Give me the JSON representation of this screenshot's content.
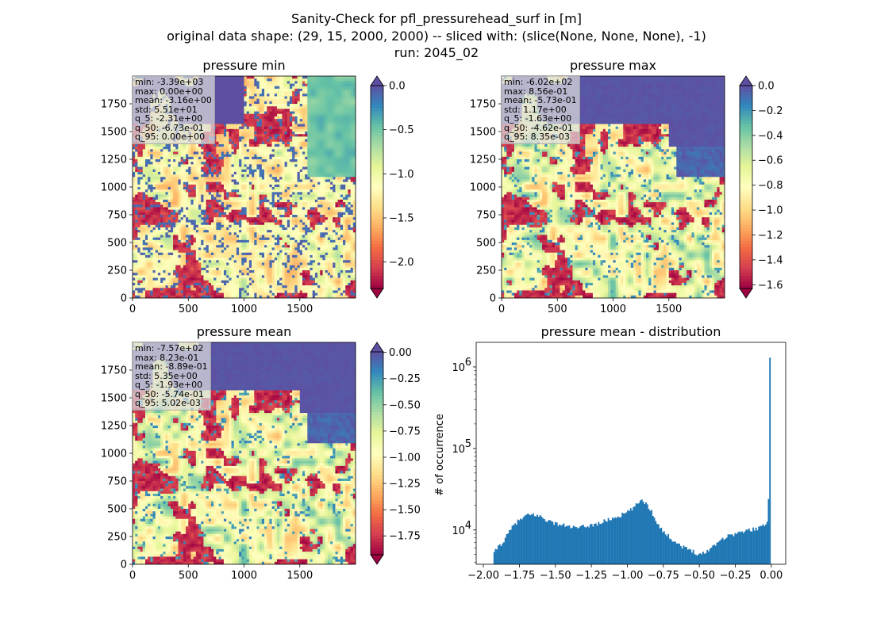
{
  "figure": {
    "title_lines": [
      "Sanity-Check for pfl_pressurehead_surf in [m]",
      "original data shape: (29, 15, 2000, 2000) -- sliced with: (slice(None, None, None), -1)",
      "run: 2045_02"
    ],
    "colormap": "Spectral",
    "colors": {
      "hist_bar": "#1f77b4",
      "over": "#5e4fa2"
    }
  },
  "chart_data": [
    {
      "type": "heatmap",
      "title": "pressure min",
      "x_ticks": [
        "0",
        "500",
        "1000",
        "1500"
      ],
      "y_ticks": [
        "0",
        "250",
        "500",
        "750",
        "1000",
        "1250",
        "1500",
        "1750"
      ],
      "xlim": [
        0,
        2000
      ],
      "ylim": [
        0,
        2000
      ],
      "colorbar": {
        "vmin": -2.3,
        "vmax": 0.0,
        "ticks": [
          "0.0",
          "-0.5",
          "-1.0",
          "-1.5",
          "-2.0"
        ],
        "extend": "both"
      },
      "stats": [
        "min: -3.39e+03",
        "max: 0.00e+00",
        "mean: -3.16e+00",
        "std: 5.51e+01",
        "q_5: -2.31e+00",
        "q_50: -6.73e-01",
        "q_95: 0.00e+00"
      ]
    },
    {
      "type": "heatmap",
      "title": "pressure max",
      "x_ticks": [
        "0",
        "500",
        "1000",
        "1500"
      ],
      "y_ticks": [
        "0",
        "250",
        "500",
        "750",
        "1000",
        "1250",
        "1500",
        "1750"
      ],
      "xlim": [
        0,
        2000
      ],
      "ylim": [
        0,
        2000
      ],
      "colorbar": {
        "vmin": -1.63,
        "vmax": 0.0,
        "ticks": [
          "0.0",
          "-0.2",
          "-0.4",
          "-0.6",
          "-0.8",
          "-1.0",
          "-1.2",
          "-1.4",
          "-1.6"
        ],
        "extend": "both"
      },
      "stats": [
        "min: -6.02e+02",
        "max: 8.56e-01",
        "mean: -5.73e-01",
        "std: 1.17e+00",
        "q_5: -1.63e+00",
        "q_50: -4.62e-01",
        "q_95: 8.35e-03"
      ]
    },
    {
      "type": "heatmap",
      "title": "pressure mean",
      "x_ticks": [
        "0",
        "500",
        "1000",
        "1500"
      ],
      "y_ticks": [
        "0",
        "250",
        "500",
        "750",
        "1000",
        "1250",
        "1500",
        "1750"
      ],
      "xlim": [
        0,
        2000
      ],
      "ylim": [
        0,
        2000
      ],
      "colorbar": {
        "vmin": -1.93,
        "vmax": 0.005,
        "ticks": [
          "0.00",
          "-0.25",
          "-0.50",
          "-0.75",
          "-1.00",
          "-1.25",
          "-1.50",
          "-1.75"
        ],
        "extend": "both"
      },
      "stats": [
        "min: -7.57e+02",
        "max: 8.23e-01",
        "mean: -8.89e-01",
        "std: 5.35e+00",
        "q_5: -1.93e+00",
        "q_50: -5.74e-01",
        "q_95: 5.02e-03"
      ]
    },
    {
      "type": "bar",
      "title": "pressure mean - distribution",
      "ylabel": "# of occurrence",
      "y_scale": "log",
      "xlim": [
        -2.05,
        0.1
      ],
      "ylim": [
        3800,
        2000000
      ],
      "x_ticks": [
        "−2.00",
        "−1.75",
        "−1.50",
        "−1.25",
        "−1.00",
        "−0.75",
        "−0.50",
        "−0.25",
        "0.00"
      ],
      "y_ticks": [
        {
          "base": "10",
          "exp": "4"
        },
        {
          "base": "10",
          "exp": "5"
        },
        {
          "base": "10",
          "exp": "6"
        }
      ],
      "bin_range": [
        -1.93,
        0.005
      ],
      "anchors_x": [
        -1.93,
        -1.9,
        -1.86,
        -1.82,
        -1.78,
        -1.74,
        -1.7,
        -1.65,
        -1.6,
        -1.55,
        -1.5,
        -1.45,
        -1.4,
        -1.35,
        -1.3,
        -1.25,
        -1.2,
        -1.15,
        -1.1,
        -1.05,
        -1.0,
        -0.95,
        -0.92,
        -0.9,
        -0.87,
        -0.84,
        -0.8,
        -0.75,
        -0.7,
        -0.65,
        -0.6,
        -0.55,
        -0.5,
        -0.46,
        -0.42,
        -0.38,
        -0.34,
        -0.3,
        -0.25,
        -0.2,
        -0.15,
        -0.1,
        -0.06,
        -0.03,
        -0.015,
        -0.005,
        0.0,
        0.005
      ],
      "anchors_y": [
        5000,
        6200,
        7200,
        9500,
        12000,
        13500,
        15000,
        15500,
        14500,
        13000,
        12000,
        11500,
        11000,
        10500,
        11000,
        11500,
        12000,
        13000,
        14000,
        15000,
        16500,
        19000,
        22000,
        24000,
        21000,
        18000,
        13000,
        9500,
        8000,
        6800,
        6000,
        5600,
        5000,
        5300,
        6000,
        7000,
        7800,
        8500,
        9000,
        9500,
        10000,
        10500,
        11000,
        12500,
        16000,
        24000,
        1300000,
        2000
      ]
    }
  ]
}
